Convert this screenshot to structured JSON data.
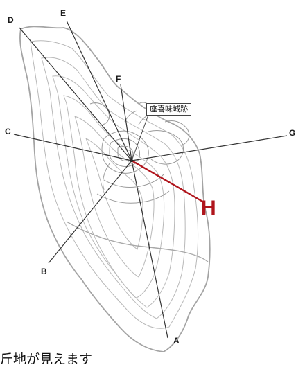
{
  "site": {
    "label": "座喜味城跡"
  },
  "directions": {
    "A": "A",
    "B": "B",
    "C": "C",
    "D": "D",
    "E": "E",
    "F": "F",
    "G": "G",
    "H": "H"
  },
  "highlight": {
    "direction": "H",
    "color": "#b0151c"
  },
  "caption": "斤地が見えます"
}
